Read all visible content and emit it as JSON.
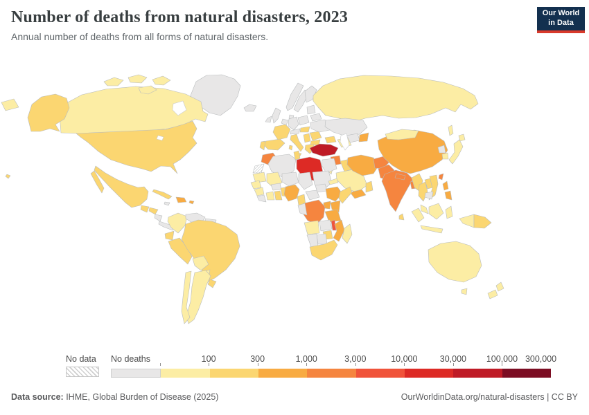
{
  "header": {
    "title": "Number of deaths from natural disasters, 2023",
    "subtitle": "Annual number of deaths from all forms of natural disasters.",
    "logo_line1": "Our World",
    "logo_line2": "in Data",
    "logo_bg": "#13304f",
    "logo_accent": "#d93a2b"
  },
  "legend": {
    "no_data_label": "No data",
    "no_deaths_label": "No deaths",
    "tick_labels": [
      "100",
      "300",
      "1,000",
      "3,000",
      "10,000",
      "30,000",
      "100,000",
      "300,000"
    ],
    "bar_bins": [
      "no_deaths",
      "b1",
      "b2",
      "b3",
      "b4",
      "b5",
      "b6",
      "b7",
      "b8"
    ]
  },
  "footer": {
    "source_label": "Data source:",
    "source_value": " IHME, Global Burden of Disease (2025)",
    "link_text": "OurWorldinData.org/natural-disasters",
    "separator": " | ",
    "license": "CC BY"
  },
  "chart_data": {
    "type": "choropleth_map",
    "title": "Number of deaths from natural disasters, 2023",
    "subtitle": "Annual number of deaths from all forms of natural disasters.",
    "year": 2023,
    "unit": "deaths",
    "legend_position": "bottom",
    "scale": {
      "type": "log-binned",
      "bin_edges": [
        0,
        100,
        300,
        1000,
        3000,
        10000,
        30000,
        100000,
        300000
      ],
      "bin_labels": {
        "no_data": "No data",
        "no_deaths": "No deaths",
        "b1": "0-100",
        "b2": "100-300",
        "b3": "300-1,000",
        "b4": "1,000-3,000",
        "b5": "3,000-10,000",
        "b6": "10,000-30,000",
        "b7": "30,000-100,000",
        "b8": "100,000-300,000"
      },
      "palette": {
        "no_deaths": "#e8e7e7",
        "b1": "#fceda4",
        "b2": "#fbd671",
        "b3": "#f8ab42",
        "b4": "#f5853f",
        "b5": "#f0533a",
        "b6": "#dd2a25",
        "b7": "#bf1b26",
        "b8": "#7c0d23"
      },
      "no_data_fill": "hatched"
    },
    "countries": {
      "greenland": "no_deaths",
      "iceland": "no_deaths",
      "canada": "b1",
      "usa": "b2",
      "alaska": "b2",
      "mexico": "b2",
      "guatemala": "b2",
      "honduras": "b2",
      "nicaragua": "no_deaths",
      "costa-rica-panama": "no_deaths",
      "cuba": "b2",
      "hispaniola": "b3",
      "puerto-rico": "b3",
      "jamaica": "no_deaths",
      "colombia": "b1",
      "venezuela": "no_deaths",
      "guianas": "no_deaths",
      "ecuador": "b2",
      "peru": "b2",
      "brazil": "b2",
      "bolivia": "b1",
      "paraguay": "b1",
      "uruguay": "b2",
      "chile": "b1",
      "argentina": "b1",
      "uk": "no_deaths",
      "ireland": "no_deaths",
      "norway": "no_deaths",
      "sweden": "no_deaths",
      "finland": "no_deaths",
      "denmark": "no_deaths",
      "baltics": "no_deaths",
      "belarus": "no_deaths",
      "poland": "no_deaths",
      "germany": "no_deaths",
      "benelux": "no_deaths",
      "france": "b2",
      "alpine": "no_deaths",
      "spain": "b2",
      "portugal": "b2",
      "italy": "b2",
      "sicily": "b2",
      "sardinia": "b2",
      "hungary-slovakia": "b2",
      "romania": "b2",
      "bulgaria": "b2",
      "balkans": "b2",
      "greece": "b2",
      "ukraine": "no_deaths",
      "russia": "b1",
      "russia-wrap": "b1",
      "sakhalin": "b1",
      "kazakhstan": "no_deaths",
      "uzbekistan": "no_deaths",
      "turkmenistan": "b1",
      "kyrgyz-tajik": "b3",
      "caucasus": "b2",
      "turkey": "b7",
      "syria": "b4",
      "levant": "b1",
      "iraq": "b2",
      "saudi-arabia": "b1",
      "yemen": "b3",
      "oman": "b2",
      "iran": "b3",
      "afghanistan": "b4",
      "pakistan": "b4",
      "india": "b4",
      "nepal": "b4",
      "bangladesh": "b4",
      "sri-lanka": "b2",
      "china": "b3",
      "mongolia": "b1",
      "north-korea": "no_deaths",
      "south-korea": "b1",
      "japan": "b1",
      "hokkaido": "b1",
      "taiwan": "b4",
      "myanmar": "b2",
      "thailand": "b2",
      "laos": "b2",
      "vietnam": "b2",
      "cambodia": "no_deaths",
      "malaysia": "b1",
      "philippines-north": "b3",
      "philippines-south": "b3",
      "borneo": "b1",
      "sumatra": "b1",
      "java": "b1",
      "sulawesi": "b1",
      "west-new-guinea": "b1",
      "papua-new-guinea": "b2",
      "australia": "b1",
      "tasmania": "b1",
      "nz-north": "b1",
      "nz-south": "b1",
      "hawaii": "b2",
      "morocco": "b4",
      "western-sahara": "no_data",
      "algeria": "no_deaths",
      "tunisia": "b2",
      "libya": "b6",
      "egypt": "no_deaths",
      "mauritania": "b1",
      "mali": "b1",
      "niger": "no_deaths",
      "chad": "no_deaths",
      "sudan": "no_deaths",
      "south-sudan": "no_deaths",
      "eritrea": "b1",
      "senegal": "b1",
      "guinea": "b1",
      "sierra-leone-liberia": "no_deaths",
      "ivory-coast": "b1",
      "ghana": "b2",
      "burkina-faso": "no_deaths",
      "togo-benin": "b2",
      "nigeria": "b3",
      "cameroon": "b2",
      "central-african-republic": "no_deaths",
      "ethiopia": "b3",
      "somalia": "b2",
      "kenya": "b3",
      "uganda": "b3",
      "tanzania": "b3",
      "drc": "b4",
      "congo-gabon": "no_deaths",
      "angola": "b1",
      "zambia": "no_deaths",
      "malawi": "b5",
      "mozambique": "b3",
      "zimbabwe": "b2",
      "botswana": "no_deaths",
      "namibia": "no_deaths",
      "south-africa": "b2",
      "madagascar": "b1"
    },
    "highlights": {
      "turkey": "30,000-100,000 deaths (dark red)",
      "libya": "10,000-30,000 deaths (red)",
      "india": "1,000-3,000 deaths (orange)",
      "malawi": "3,000-10,000 deaths (orange-red)"
    }
  }
}
